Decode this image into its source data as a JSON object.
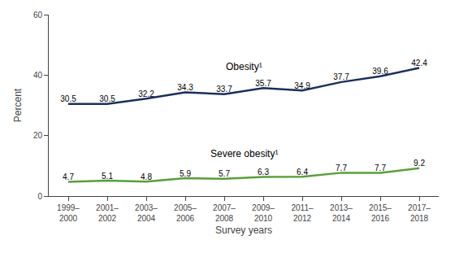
{
  "chart_data": {
    "type": "line",
    "xlabel": "Survey years",
    "ylabel": "Percent",
    "categories": [
      "1999–\n2000",
      "2001–\n2002",
      "2003–\n2004",
      "2005–\n2006",
      "2007–\n2008",
      "2009–\n2010",
      "2011–\n2012",
      "2013–\n2014",
      "2015–\n2016",
      "2017–\n2018"
    ],
    "series": [
      {
        "name": "Obesity¹",
        "color": "#1a2f5e",
        "values": [
          30.5,
          30.5,
          32.2,
          34.3,
          33.7,
          35.7,
          34.9,
          37.7,
          39.6,
          42.4
        ]
      },
      {
        "name": "Severe obesity¹",
        "color": "#5a9e3a",
        "values": [
          4.7,
          5.1,
          4.8,
          5.9,
          5.7,
          6.3,
          6.4,
          7.7,
          7.7,
          9.2
        ]
      }
    ],
    "ylim": [
      0,
      60
    ],
    "yticks": [
      0,
      20,
      40,
      60
    ],
    "grid": false,
    "data_labels": true
  }
}
